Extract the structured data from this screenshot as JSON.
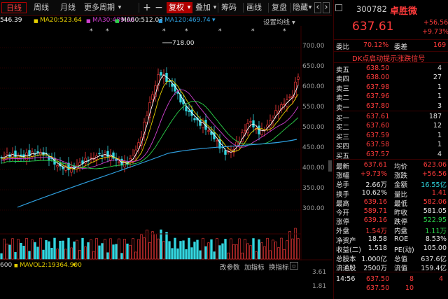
{
  "toolbar": {
    "tabs": [
      {
        "label": "日线"
      },
      {
        "label": "周线"
      },
      {
        "label": "月线"
      },
      {
        "label": "更多周期"
      }
    ],
    "more_arrow": "▾",
    "zoom_in": "+",
    "zoom_out": "−",
    "adjust": "复权",
    "adjust_arrow": "▾",
    "overlay": "叠加",
    "overlay_arrow": "▾",
    "chips": "筹码",
    "draw": "画线",
    "review": "复盘",
    "hide": "隐藏",
    "hide_arrow": "▾",
    "prev": "‹",
    "next": "›"
  },
  "ma_bar": {
    "ma5": "546.39",
    "ma20": "MA20:523.64",
    "ma30": "MA30:489.00",
    "ma60": "MA60:512.03",
    "ma120": "MA120:469.74",
    "ma_arrow": "▾",
    "settings": "设置均线",
    "settings_arrow": "▾"
  },
  "chart": {
    "y_ticks": [
      "700.00",
      "650.00",
      "600.00",
      "550.00",
      "500.00",
      "450.00",
      "400.00",
      "350.00",
      "300.00"
    ],
    "peak_label": "718.00",
    "colors": {
      "up": "#ff3b3b",
      "down": "#33d6e0",
      "ma5": "#ffffff",
      "ma10": "#e7d000",
      "ma20": "#d040d0",
      "ma30": "#2bd04a",
      "ma60": "#2fa0e0"
    }
  },
  "vol": {
    "left_value": "600",
    "mavol": "MAVOL2:19364.900",
    "mavol_arrow": "▾",
    "tabs": [
      "改参数",
      "加指标",
      "换指标"
    ],
    "y_ticks": [
      "3.61",
      "1.81"
    ]
  },
  "quote": {
    "code": "300782",
    "name": "卓胜微",
    "price": "637.61",
    "change": "+56.56",
    "change_pct": "+9.73%",
    "bid_ratio_label": "委比",
    "bid_ratio": "70.12%",
    "bid_diff_label": "委差",
    "bid_diff": "169",
    "banner": "DK点启动提示涨跌信号",
    "asks": [
      {
        "label": "卖五",
        "price": "638.50",
        "vol": "4"
      },
      {
        "label": "卖四",
        "price": "638.00",
        "vol": "27"
      },
      {
        "label": "卖三",
        "price": "637.98",
        "vol": "1"
      },
      {
        "label": "卖二",
        "price": "637.96",
        "vol": "1"
      },
      {
        "label": "卖一",
        "price": "637.80",
        "vol": "3"
      }
    ],
    "bids": [
      {
        "label": "买一",
        "price": "637.61",
        "vol": "187"
      },
      {
        "label": "买二",
        "price": "637.60",
        "vol": "12"
      },
      {
        "label": "买三",
        "price": "637.59",
        "vol": "1"
      },
      {
        "label": "买四",
        "price": "637.58",
        "vol": "1"
      },
      {
        "label": "买五",
        "price": "637.57",
        "vol": "4"
      }
    ],
    "stats": [
      {
        "l1": "最新",
        "v1": "637.61",
        "c1": "red",
        "l2": "均价",
        "v2": "623.06",
        "c2": "red"
      },
      {
        "l1": "涨幅",
        "v1": "+9.73%",
        "c1": "red",
        "l2": "涨跌",
        "v2": "+56.56",
        "c2": "red"
      },
      {
        "l1": "总手",
        "v1": "2.66万",
        "c1": "wht",
        "l2": "金额",
        "v2": "16.55亿",
        "c2": "cyn"
      },
      {
        "l1": "换手",
        "v1": "10.62%",
        "c1": "wht",
        "l2": "量比",
        "v2": "1.41",
        "c2": "red"
      },
      {
        "l1": "最高",
        "v1": "639.16",
        "c1": "red",
        "l2": "最低",
        "v2": "582.06",
        "c2": "red"
      },
      {
        "l1": "今开",
        "v1": "589.71",
        "c1": "red",
        "l2": "昨收",
        "v2": "581.05",
        "c2": "wht"
      },
      {
        "l1": "涨停",
        "v1": "639.16",
        "c1": "red",
        "l2": "跌停",
        "v2": "522.95",
        "c2": "grn"
      },
      {
        "l1": "外盘",
        "v1": "1.54万",
        "c1": "red",
        "l2": "内盘",
        "v2": "1.11万",
        "c2": "grn"
      },
      {
        "l1": "净资产",
        "v1": "18.58",
        "c1": "wht",
        "l2": "ROE",
        "v2": "8.53%",
        "c2": "wht"
      },
      {
        "l1": "收益(二)",
        "v1": "1.518",
        "c1": "wht",
        "l2": "PE(动)",
        "v2": "105.00",
        "c2": "wht"
      },
      {
        "l1": "总股本",
        "v1": "1.000亿",
        "c1": "wht",
        "l2": "总值",
        "v2": "637.6亿",
        "c2": "wht"
      },
      {
        "l1": "流通股",
        "v1": "2500万",
        "c1": "wht",
        "l2": "流值",
        "v2": "159.4亿",
        "c2": "wht"
      }
    ],
    "ticks": [
      {
        "time": "14:56",
        "price": "637.50",
        "vol": "8",
        "flag": "4"
      },
      {
        "time": "",
        "price": "637.50",
        "vol": "10",
        "flag": ""
      }
    ]
  }
}
